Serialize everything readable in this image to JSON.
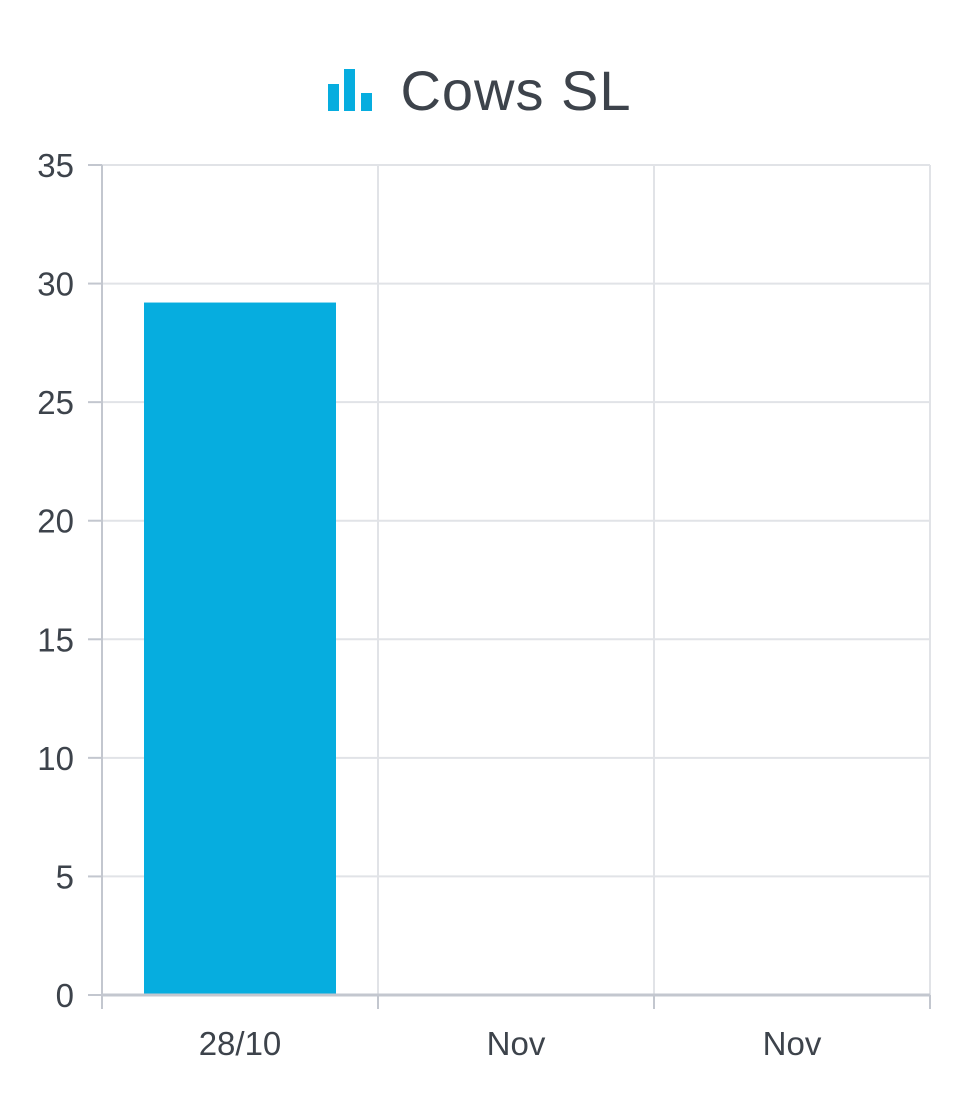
{
  "header": {
    "title": "Cows SL",
    "icon": "bar-chart-icon"
  },
  "colors": {
    "bar": "#06addf",
    "grid": "#e1e3e7",
    "axis": "#c3c7cf",
    "text": "#3d434b"
  },
  "chart_data": {
    "type": "bar",
    "title": "Cows SL",
    "categories": [
      "28/10",
      "Nov",
      "Nov"
    ],
    "values": [
      29.2,
      0,
      0
    ],
    "ylim": [
      0,
      35
    ],
    "yticks": [
      0,
      5,
      10,
      15,
      20,
      25,
      30,
      35
    ],
    "grid": true,
    "legend": "none"
  }
}
